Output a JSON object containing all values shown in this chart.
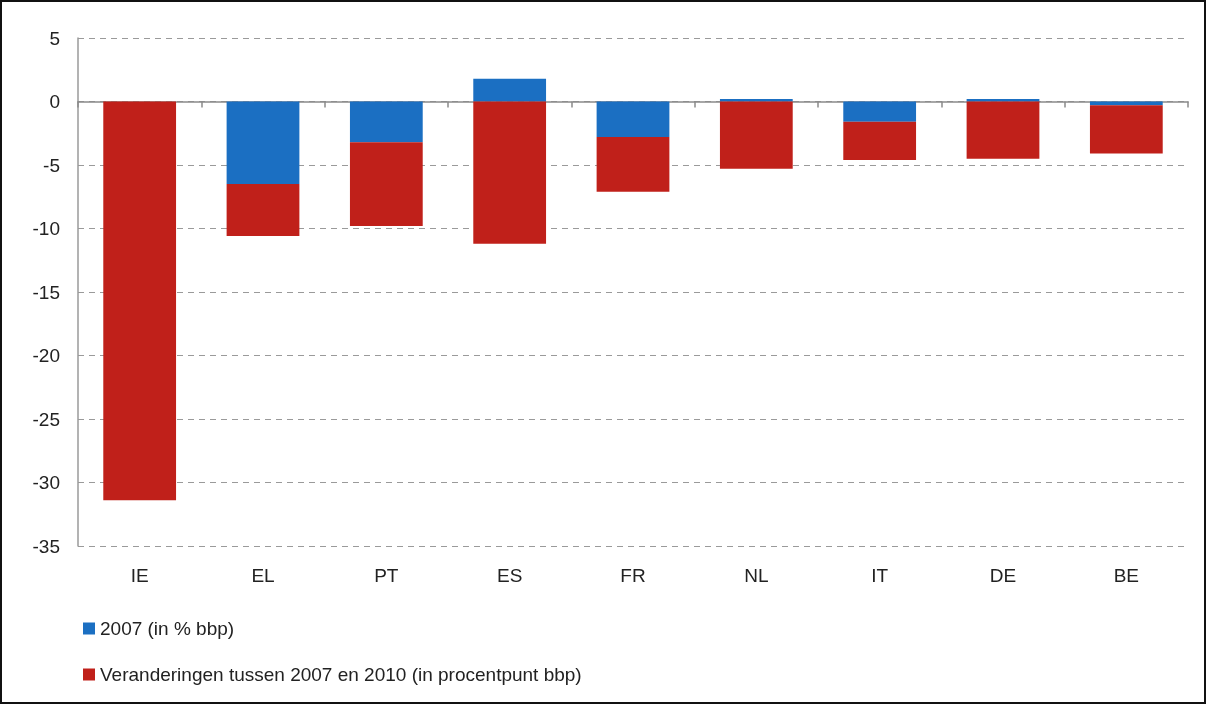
{
  "chart_data": {
    "type": "bar",
    "categories": [
      "IE",
      "EL",
      "PT",
      "ES",
      "FR",
      "NL",
      "IT",
      "DE",
      "BE"
    ],
    "series": [
      {
        "name": "2007 (in % bbp)",
        "color": "#1b6fc2",
        "values": [
          null,
          -6.5,
          -3.2,
          1.8,
          -2.8,
          0.2,
          -1.6,
          0.2,
          -0.3
        ]
      },
      {
        "name": "Veranderingen tussen 2007 en 2010 (in procentpunt bbp)",
        "color": "#c0201a",
        "values": [
          -31.4,
          -4.1,
          -6.6,
          -11.2,
          -4.3,
          -5.3,
          -3.0,
          -4.5,
          -3.8
        ]
      }
    ],
    "stacked": true,
    "ylim": [
      -35,
      5
    ],
    "yticks": [
      -35,
      -30,
      -25,
      -20,
      -15,
      -10,
      -5,
      0,
      5
    ],
    "grid": "y",
    "legend": "bottom left"
  }
}
